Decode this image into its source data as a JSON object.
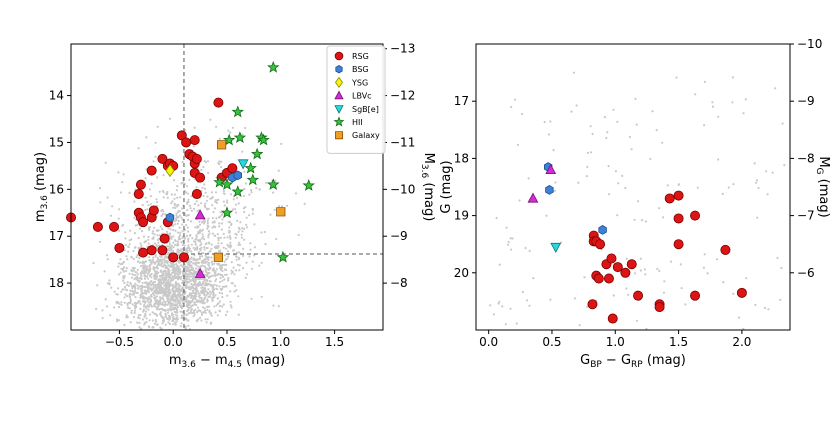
{
  "chart_data": [
    {
      "type": "scatter",
      "title": "",
      "xlabel_main": "m",
      "xlabel_sub1": "3.6",
      "xlabel_mid": " − m",
      "xlabel_sub2": "4.5",
      "xlabel_end": " (mag)",
      "ylabel_main": "m",
      "ylabel_sub": "3.6",
      "ylabel_end": " (mag)",
      "y2label_main": "M",
      "y2label_sub": "3.6",
      "y2label_end": " (mag)",
      "xlim": [
        -0.95,
        1.95
      ],
      "ylim": [
        19.0,
        12.9
      ],
      "xticks": [
        {
          "v": -0.5,
          "t": "−0.5"
        },
        {
          "v": 0.0,
          "t": "0.0"
        },
        {
          "v": 0.5,
          "t": "0.5"
        },
        {
          "v": 1.0,
          "t": "1.0"
        },
        {
          "v": 1.5,
          "t": "1.5"
        }
      ],
      "yticks": [
        {
          "v": 14,
          "t": "14"
        },
        {
          "v": 15,
          "t": "15"
        },
        {
          "v": 16,
          "t": "16"
        },
        {
          "v": 17,
          "t": "17"
        },
        {
          "v": 18,
          "t": "18"
        }
      ],
      "y2ticks": [
        {
          "v": -13,
          "t": "−13"
        },
        {
          "v": -12,
          "t": "−12"
        },
        {
          "v": -11,
          "t": "−11"
        },
        {
          "v": -10,
          "t": "−10"
        },
        {
          "v": -9,
          "t": "−9"
        },
        {
          "v": -8,
          "t": "−8"
        }
      ],
      "distance_modulus": 26.0,
      "dashed_vline_x": 0.1,
      "dashed_hline_y": 17.38,
      "legend": [
        "RSG",
        "BSG",
        "YSG",
        "LBVc",
        "SgB[e]",
        "HII",
        "Galaxy"
      ],
      "series": [
        {
          "name": "RSG",
          "points": [
            [
              -0.95,
              16.6
            ],
            [
              -0.7,
              16.8
            ],
            [
              -0.55,
              16.8
            ],
            [
              -0.5,
              17.25
            ],
            [
              -0.32,
              16.5
            ],
            [
              -0.3,
              16.6
            ],
            [
              -0.28,
              16.7
            ],
            [
              -0.32,
              16.1
            ],
            [
              -0.3,
              15.9
            ],
            [
              -0.2,
              16.6
            ],
            [
              -0.18,
              16.45
            ],
            [
              -0.2,
              17.3
            ],
            [
              -0.28,
              17.35
            ],
            [
              -0.1,
              17.3
            ],
            [
              -0.08,
              17.05
            ],
            [
              -0.05,
              16.7
            ],
            [
              0.0,
              17.45
            ],
            [
              0.1,
              17.45
            ],
            [
              -0.2,
              15.6
            ],
            [
              -0.1,
              15.35
            ],
            [
              -0.05,
              15.5
            ],
            [
              -0.03,
              15.45
            ],
            [
              0.0,
              15.5
            ],
            [
              0.08,
              14.85
            ],
            [
              0.12,
              15.0
            ],
            [
              0.2,
              14.95
            ],
            [
              0.15,
              15.25
            ],
            [
              0.18,
              15.3
            ],
            [
              0.2,
              15.45
            ],
            [
              0.22,
              15.35
            ],
            [
              0.2,
              15.65
            ],
            [
              0.25,
              15.75
            ],
            [
              0.22,
              16.1
            ],
            [
              0.42,
              14.15
            ],
            [
              0.45,
              15.75
            ],
            [
              0.5,
              15.65
            ],
            [
              0.55,
              15.55
            ]
          ]
        },
        {
          "name": "BSG",
          "points": [
            [
              -0.03,
              16.6
            ],
            [
              0.55,
              15.75
            ],
            [
              0.6,
              15.7
            ]
          ]
        },
        {
          "name": "YSG",
          "points": [
            [
              -0.03,
              15.6
            ]
          ]
        },
        {
          "name": "LBVc",
          "points": [
            [
              0.25,
              16.55
            ],
            [
              0.25,
              17.8
            ]
          ]
        },
        {
          "name": "SgB[e]",
          "points": [
            [
              0.65,
              15.45
            ]
          ]
        },
        {
          "name": "HII",
          "points": [
            [
              0.93,
              13.4
            ],
            [
              0.6,
              14.35
            ],
            [
              0.52,
              14.95
            ],
            [
              0.62,
              14.9
            ],
            [
              0.82,
              14.9
            ],
            [
              0.84,
              14.95
            ],
            [
              0.78,
              15.25
            ],
            [
              0.72,
              15.55
            ],
            [
              0.43,
              15.85
            ],
            [
              0.5,
              15.9
            ],
            [
              0.6,
              16.05
            ],
            [
              0.74,
              15.8
            ],
            [
              0.93,
              15.9
            ],
            [
              1.26,
              15.92
            ],
            [
              0.5,
              16.5
            ],
            [
              1.02,
              17.45
            ]
          ]
        },
        {
          "name": "Galaxy",
          "points": [
            [
              0.45,
              15.05
            ],
            [
              1.0,
              16.48
            ],
            [
              0.42,
              17.45
            ]
          ]
        }
      ]
    },
    {
      "type": "scatter",
      "title": "",
      "xlabel_main": "G",
      "xlabel_sub1": "BP",
      "xlabel_mid": " − G",
      "xlabel_sub2": "RP",
      "xlabel_end": " (mag)",
      "ylabel_main": "G",
      "ylabel_sub": "",
      "ylabel_end": " (mag)",
      "y2label_main": "M",
      "y2label_sub": "G",
      "y2label_end": " (mag)",
      "xlim": [
        -0.1,
        2.38
      ],
      "ylim": [
        21.0,
        16.0
      ],
      "xticks": [
        {
          "v": 0.0,
          "t": "0.0"
        },
        {
          "v": 0.5,
          "t": "0.5"
        },
        {
          "v": 1.0,
          "t": "1.0"
        },
        {
          "v": 1.5,
          "t": "1.5"
        },
        {
          "v": 2.0,
          "t": "2.0"
        }
      ],
      "yticks": [
        {
          "v": 17,
          "t": "17"
        },
        {
          "v": 18,
          "t": "18"
        },
        {
          "v": 19,
          "t": "19"
        },
        {
          "v": 20,
          "t": "20"
        }
      ],
      "y2ticks": [
        {
          "v": -10,
          "t": "−10"
        },
        {
          "v": -9,
          "t": "−9"
        },
        {
          "v": -8,
          "t": "−8"
        },
        {
          "v": -7,
          "t": "−7"
        },
        {
          "v": -6,
          "t": "−6"
        }
      ],
      "distance_modulus": 26.0,
      "series": [
        {
          "name": "RSG",
          "points": [
            [
              0.83,
              19.35
            ],
            [
              0.83,
              19.45
            ],
            [
              0.85,
              19.45
            ],
            [
              0.88,
              19.5
            ],
            [
              0.85,
              20.05
            ],
            [
              0.87,
              20.1
            ],
            [
              0.93,
              19.85
            ],
            [
              0.95,
              20.1
            ],
            [
              0.97,
              19.75
            ],
            [
              1.02,
              19.9
            ],
            [
              1.08,
              20.0
            ],
            [
              1.13,
              19.85
            ],
            [
              1.18,
              20.4
            ],
            [
              0.82,
              20.55
            ],
            [
              0.98,
              20.8
            ],
            [
              1.35,
              20.55
            ],
            [
              1.35,
              20.6
            ],
            [
              1.43,
              18.7
            ],
            [
              1.5,
              18.65
            ],
            [
              1.5,
              19.05
            ],
            [
              1.5,
              19.5
            ],
            [
              1.63,
              19.0
            ],
            [
              1.63,
              20.4
            ],
            [
              1.87,
              19.6
            ],
            [
              2.0,
              20.35
            ]
          ]
        },
        {
          "name": "BSG",
          "points": [
            [
              0.47,
              18.15
            ],
            [
              0.48,
              18.55
            ],
            [
              0.9,
              19.25
            ]
          ]
        },
        {
          "name": "LBVc",
          "points": [
            [
              0.35,
              18.7
            ],
            [
              0.49,
              18.2
            ]
          ]
        },
        {
          "name": "SgB[e]",
          "points": [
            [
              0.53,
              19.55
            ]
          ]
        }
      ]
    }
  ]
}
